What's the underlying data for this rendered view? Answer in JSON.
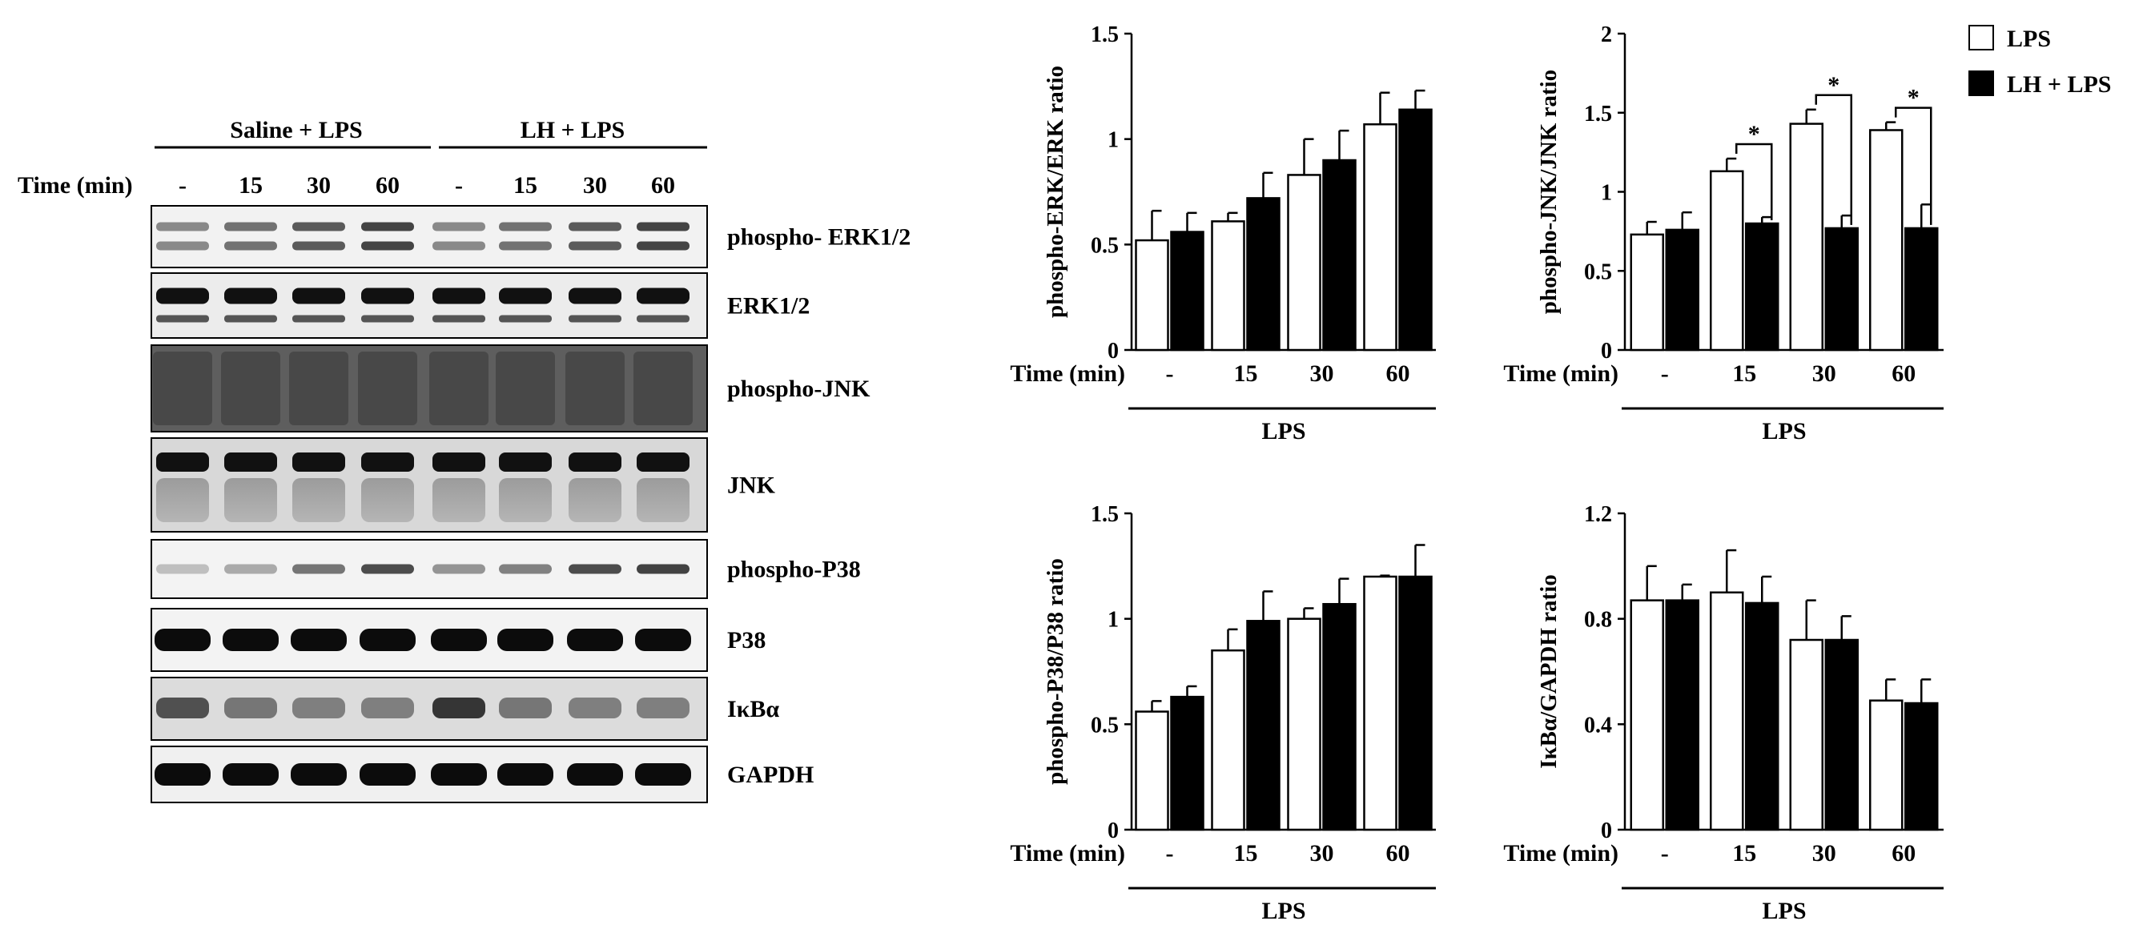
{
  "blot": {
    "groups": [
      "Saline + LPS",
      "LH + LPS"
    ],
    "time_label": "Time (min)",
    "lanes": [
      "-",
      "15",
      "30",
      "60",
      "-",
      "15",
      "30",
      "60"
    ],
    "bands": [
      "phospho- ERK1/2",
      "ERK1/2",
      "phospho-JNK",
      "JNK",
      "phospho-P38",
      "P38",
      "IκBα",
      "GAPDH"
    ]
  },
  "legend": {
    "items": [
      {
        "label": "LPS",
        "color": "#ffffff"
      },
      {
        "label": "LH + LPS",
        "color": "#000000"
      }
    ],
    "placement": "top-right"
  },
  "chart_data": [
    {
      "type": "bar",
      "categories": [
        "-",
        "15",
        "30",
        "60"
      ],
      "xlabel": "Time (min)",
      "group_label": "LPS",
      "ylabel": "phospho-ERK/ERK ratio",
      "ylim": [
        0,
        1.5
      ],
      "yticks": [
        "0",
        "0.5",
        "1",
        "1.5"
      ],
      "series": [
        {
          "name": "LPS",
          "values": [
            0.52,
            0.61,
            0.83,
            1.07
          ],
          "errors": [
            0.14,
            0.04,
            0.17,
            0.15
          ]
        },
        {
          "name": "LH + LPS",
          "values": [
            0.56,
            0.72,
            0.9,
            1.14
          ],
          "errors": [
            0.09,
            0.12,
            0.14,
            0.09
          ]
        }
      ],
      "significance": []
    },
    {
      "type": "bar",
      "categories": [
        "-",
        "15",
        "30",
        "60"
      ],
      "xlabel": "Time (min)",
      "group_label": "LPS",
      "ylabel": "phospho-JNK/JNK ratio",
      "ylim": [
        0,
        2
      ],
      "yticks": [
        "0",
        "0.5",
        "1",
        "1.5",
        "2"
      ],
      "series": [
        {
          "name": "LPS",
          "values": [
            0.73,
            1.13,
            1.43,
            1.39
          ],
          "errors": [
            0.08,
            0.08,
            0.09,
            0.05
          ]
        },
        {
          "name": "LH + LPS",
          "values": [
            0.76,
            0.8,
            0.77,
            0.77
          ],
          "errors": [
            0.11,
            0.04,
            0.08,
            0.15
          ]
        }
      ],
      "significance": [
        {
          "category": "15",
          "label": "*"
        },
        {
          "category": "30",
          "label": "*"
        },
        {
          "category": "60",
          "label": "*"
        }
      ]
    },
    {
      "type": "bar",
      "categories": [
        "-",
        "15",
        "30",
        "60"
      ],
      "xlabel": "Time (min)",
      "group_label": "LPS",
      "ylabel": "phospho-P38/P38 ratio",
      "ylim": [
        0,
        1.5
      ],
      "yticks": [
        "0",
        "0.5",
        "1",
        "1.5"
      ],
      "series": [
        {
          "name": "LPS",
          "values": [
            0.56,
            0.85,
            1.0,
            1.2
          ],
          "errors": [
            0.05,
            0.1,
            0.05,
            0.005
          ]
        },
        {
          "name": "LH + LPS",
          "values": [
            0.63,
            0.99,
            1.07,
            1.2
          ],
          "errors": [
            0.05,
            0.14,
            0.12,
            0.15
          ]
        }
      ],
      "significance": []
    },
    {
      "type": "bar",
      "categories": [
        "-",
        "15",
        "30",
        "60"
      ],
      "xlabel": "Time (min)",
      "group_label": "LPS",
      "ylabel": "IκBα/GAPDH ratio",
      "ylim": [
        0,
        1.2
      ],
      "yticks": [
        "0",
        "0.4",
        "0.8",
        "1.2"
      ],
      "series": [
        {
          "name": "LPS",
          "values": [
            0.87,
            0.9,
            0.72,
            0.49
          ],
          "errors": [
            0.13,
            0.16,
            0.15,
            0.08
          ]
        },
        {
          "name": "LH + LPS",
          "values": [
            0.87,
            0.86,
            0.72,
            0.48
          ],
          "errors": [
            0.06,
            0.1,
            0.09,
            0.09
          ]
        }
      ],
      "significance": []
    }
  ]
}
